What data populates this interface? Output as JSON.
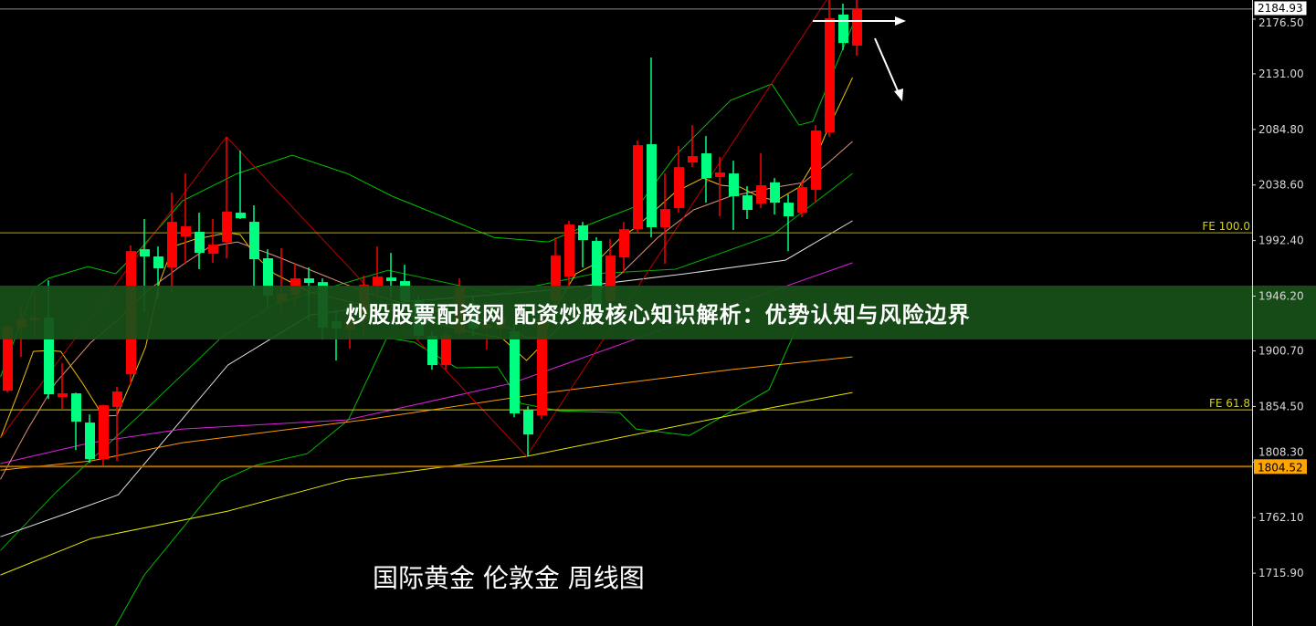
{
  "banner_title": "炒股股票配资网 配资炒股核心知识解析：优势认知与风险边界",
  "caption": "国际黄金 伦敦金 周线图",
  "chart_data": {
    "type": "candlestick",
    "ylim": [
      1672,
      2192.4
    ],
    "grid": false,
    "colors": {
      "up": "#ff0000",
      "down": "#00ff80",
      "background": "#000000",
      "axis": "#d8d8d8"
    },
    "y_ticks": [
      "2176.50",
      "2131.00",
      "2084.80",
      "2038.60",
      "1992.40",
      "1946.20",
      "1900.70",
      "1854.50",
      "1808.30",
      "1762.10",
      "1715.90"
    ],
    "current_price": {
      "label": "2184.93",
      "value": 2184.93
    },
    "price_marker": {
      "label": "1804.52",
      "value": 1804.52,
      "color": "#ffa500"
    },
    "fib_levels": [
      {
        "label": "FE 100.0",
        "value": 1998.9,
        "color": "#b0b000"
      },
      {
        "label": "FE 61.8",
        "value": 1851.7,
        "color": "#d4d400"
      }
    ],
    "candles": [
      [
        1867.6,
        1923.0,
        1866.1,
        1920.8
      ],
      [
        1920.0,
        1937.4,
        1895.7,
        1926.8
      ],
      [
        1926.1,
        1949.6,
        1911.6,
        1928.3
      ],
      [
        1928.3,
        1959.4,
        1860.8,
        1864.6
      ],
      [
        1862.3,
        1890.4,
        1852.5,
        1865.4
      ],
      [
        1865.4,
        1866.0,
        1818.3,
        1841.8
      ],
      [
        1841.1,
        1847.9,
        1807.7,
        1810.7
      ],
      [
        1810.7,
        1856.0,
        1805.4,
        1855.5
      ],
      [
        1854.0,
        1870.7,
        1809.2,
        1866.9
      ],
      [
        1881.3,
        1988.3,
        1872.2,
        1983.7
      ],
      [
        1985.2,
        2010.3,
        1932.9,
        1979.2
      ],
      [
        1979.2,
        1987.5,
        1943.5,
        1969.3
      ],
      [
        1970.1,
        2032.3,
        1949.6,
        2008.0
      ],
      [
        1995.9,
        2048.2,
        1973.1,
        2004.2
      ],
      [
        1999.7,
        2015.6,
        1968.6,
        1982.2
      ],
      [
        1981.5,
        2010.3,
        1973.9,
        1989.0
      ],
      [
        1991.3,
        2078.6,
        1977.7,
        2016.4
      ],
      [
        2015.6,
        2067.2,
        2010.3,
        2011.0
      ],
      [
        2008.0,
        2021.7,
        1951.9,
        1976.9
      ],
      [
        1977.7,
        1985.2,
        1936.7,
        1946.5
      ],
      [
        1941.2,
        1986.0,
        1932.9,
        1948.1
      ],
      [
        1947.3,
        1973.1,
        1938.2,
        1961.0
      ],
      [
        1961.0,
        1970.1,
        1925.3,
        1957.2
      ],
      [
        1957.9,
        1961.0,
        1910.1,
        1920.0
      ],
      [
        1925.3,
        1934.4,
        1892.7,
        1919.2
      ],
      [
        1918.5,
        1934.4,
        1902.5,
        1926.8
      ],
      [
        1926.8,
        1963.2,
        1913.2,
        1955.6
      ],
      [
        1954.9,
        1987.5,
        1947.3,
        1962.5
      ],
      [
        1961.7,
        1982.2,
        1944.3,
        1958.7
      ],
      [
        1958.7,
        1972.3,
        1934.4,
        1942.0
      ],
      [
        1942.0,
        1945.8,
        1910.1,
        1913.2
      ],
      [
        1913.2,
        1917.0,
        1885.1,
        1888.9
      ],
      [
        1888.9,
        1917.7,
        1885.1,
        1913.9
      ],
      [
        1915.4,
        1961.0,
        1911.6,
        1953.4
      ],
      [
        1939.7,
        1945.8,
        1913.2,
        1919.2
      ],
      [
        1919.2,
        1930.6,
        1901.8,
        1923.0
      ],
      [
        1919.2,
        1935.9,
        1913.2,
        1929.1
      ],
      [
        1917.0,
        1923.0,
        1845.6,
        1848.7
      ],
      [
        1851.7,
        1854.7,
        1813.0,
        1831.2
      ],
      [
        1847.1,
        1930.6,
        1844.1,
        1926.8
      ],
      [
        1942.0,
        1995.1,
        1938.2,
        1979.9
      ],
      [
        1962.5,
        2008.8,
        1954.9,
        2005.7
      ],
      [
        2005.0,
        2008.0,
        1970.1,
        1992.8
      ],
      [
        1992.1,
        1995.1,
        1934.4,
        1938.2
      ],
      [
        1942.0,
        1993.6,
        1938.2,
        1979.9
      ],
      [
        1978.4,
        2008.0,
        1965.5,
        2001.9
      ],
      [
        2001.9,
        2075.5,
        1998.9,
        2071.7
      ],
      [
        2072.5,
        2144.6,
        1995.1,
        2003.5
      ],
      [
        2003.5,
        2048.2,
        1973.1,
        2018.6
      ],
      [
        2019.4,
        2071.0,
        2015.6,
        2053.5
      ],
      [
        2057.3,
        2088.4,
        2053.5,
        2062.6
      ],
      [
        2064.9,
        2079.3,
        2023.9,
        2044.4
      ],
      [
        2045.2,
        2061.9,
        2012.6,
        2049.0
      ],
      [
        2048.2,
        2058.8,
        2001.2,
        2029.3
      ],
      [
        2030.0,
        2037.6,
        2010.3,
        2017.9
      ],
      [
        2023.2,
        2064.9,
        2019.4,
        2038.4
      ],
      [
        2040.8,
        2044.4,
        2014.1,
        2023.9
      ],
      [
        2023.9,
        2030.8,
        1983.7,
        2012.6
      ],
      [
        2015.6,
        2042.2,
        2011.8,
        2036.8
      ],
      [
        2034.6,
        2088.4,
        2023.9,
        2083.9
      ],
      [
        2082.4,
        2192.4,
        2078.6,
        2177.2
      ],
      [
        2180.3,
        2189.4,
        2150.7,
        2156.7
      ],
      [
        2154.5,
        2192.4,
        2146.1,
        2184.93
      ]
    ],
    "candle_fields": [
      "open",
      "high",
      "low",
      "close"
    ],
    "lines": [
      {
        "color": "#00c000",
        "points": [
          [
            -0.5,
            1879.0
          ],
          [
            1.9,
            1951.9
          ],
          [
            3.0,
            1961.0
          ],
          [
            5.9,
            1970.8
          ],
          [
            7.9,
            1964.8
          ],
          [
            9.7,
            1985.2
          ],
          [
            12.8,
            2025.5
          ],
          [
            16.8,
            2048.2
          ],
          [
            20.8,
            2063.4
          ],
          [
            24.8,
            2048.2
          ],
          [
            28.1,
            2029.3
          ],
          [
            35.5,
            1995.1
          ],
          [
            39.5,
            1991.3
          ],
          [
            42.1,
            2004.2
          ],
          [
            46.1,
            2021.7
          ],
          [
            48.8,
            2063.4
          ],
          [
            52.8,
            2109.0
          ],
          [
            55.8,
            2122.6
          ],
          [
            57.8,
            2088.4
          ],
          [
            58.8,
            2091.5
          ],
          [
            61.7,
            2171.2
          ]
        ]
      },
      {
        "color": "#00c000",
        "points": [
          [
            7.9,
            1671.9
          ],
          [
            10.0,
            1714.4
          ],
          [
            15.6,
            1792.5
          ],
          [
            18.1,
            1805.4
          ],
          [
            21.9,
            1815.3
          ],
          [
            24.9,
            1843.4
          ],
          [
            27.7,
            1911.6
          ],
          [
            29.7,
            1907.9
          ],
          [
            32.8,
            1886.6
          ],
          [
            35.8,
            1887.4
          ],
          [
            37.5,
            1857.0
          ],
          [
            40.3,
            1850.9
          ],
          [
            44.7,
            1849.4
          ],
          [
            45.9,
            1835.8
          ],
          [
            49.8,
            1830.4
          ],
          [
            55.6,
            1868.4
          ],
          [
            57.3,
            1911.6
          ],
          [
            58.1,
            1932.9
          ]
        ]
      },
      {
        "color": "#00b000",
        "points": [
          [
            -0.5,
            1734.8
          ],
          [
            3.5,
            1782.6
          ],
          [
            10.0,
            1850.9
          ],
          [
            15.6,
            1911.6
          ],
          [
            19.5,
            1939.7
          ],
          [
            27.8,
            1967.8
          ],
          [
            35.8,
            1948.1
          ],
          [
            42.8,
            1964.8
          ],
          [
            48.8,
            1968.6
          ],
          [
            55.9,
            1997.4
          ],
          [
            61.7,
            2048.2
          ]
        ]
      },
      {
        "color": "#e0e0e0",
        "points": [
          [
            -0.5,
            1746.2
          ],
          [
            4.8,
            1767.5
          ],
          [
            8.1,
            1781.1
          ],
          [
            16.1,
            1888.9
          ],
          [
            22.1,
            1930.6
          ],
          [
            29.5,
            1942.0
          ],
          [
            39.5,
            1951.1
          ],
          [
            49.5,
            1964.8
          ],
          [
            56.8,
            1976.1
          ],
          [
            61.7,
            2008.8
          ]
        ]
      },
      {
        "color": "#e020e0",
        "points": [
          [
            -0.5,
            1807.0
          ],
          [
            6.1,
            1824.4
          ],
          [
            12.8,
            1835.8
          ],
          [
            24.8,
            1843.4
          ],
          [
            36.8,
            1873.7
          ],
          [
            46.1,
            1911.6
          ],
          [
            61.7,
            1973.9
          ]
        ]
      },
      {
        "color": "#ff9a00",
        "points": [
          [
            -0.5,
            1801.6
          ],
          [
            6.1,
            1809.2
          ],
          [
            12.8,
            1824.4
          ],
          [
            26.1,
            1843.4
          ],
          [
            39.5,
            1866.1
          ],
          [
            52.8,
            1885.1
          ],
          [
            61.7,
            1895.7
          ]
        ]
      },
      {
        "color": "#e6e600",
        "points": [
          [
            -0.5,
            1714.4
          ],
          [
            6.1,
            1744.7
          ],
          [
            16.1,
            1767.5
          ],
          [
            24.8,
            1794.0
          ],
          [
            37.9,
            1813.0
          ],
          [
            52.8,
            1847.1
          ],
          [
            61.7,
            1866.1
          ]
        ]
      },
      {
        "color": "#f0c000",
        "points": [
          [
            -0.5,
            1828.2
          ],
          [
            0.8,
            1866.1
          ],
          [
            1.9,
            1900.3
          ],
          [
            3.0,
            1901.0
          ],
          [
            3.9,
            1900.3
          ],
          [
            5.5,
            1873.7
          ],
          [
            7.0,
            1846.4
          ],
          [
            8.0,
            1847.1
          ],
          [
            9.0,
            1873.7
          ],
          [
            10.1,
            1904.1
          ],
          [
            11.1,
            1957.2
          ],
          [
            12.1,
            1987.5
          ],
          [
            13.7,
            1993.6
          ],
          [
            16.1,
            1998.9
          ],
          [
            17.0,
            1997.4
          ],
          [
            18.1,
            1979.9
          ],
          [
            19.5,
            1964.8
          ],
          [
            22.1,
            1949.6
          ],
          [
            24.8,
            1942.0
          ],
          [
            28.1,
            1934.4
          ],
          [
            31.5,
            1923.0
          ],
          [
            34.1,
            1915.4
          ],
          [
            36.1,
            1911.6
          ],
          [
            37.9,
            1892.7
          ],
          [
            38.9,
            1904.1
          ],
          [
            39.9,
            1934.4
          ],
          [
            41.5,
            1964.8
          ],
          [
            42.8,
            1972.3
          ],
          [
            44.8,
            1995.1
          ],
          [
            45.8,
            2002.7
          ],
          [
            48.8,
            2033.0
          ],
          [
            50.8,
            2044.4
          ],
          [
            52.1,
            2038.4
          ],
          [
            53.5,
            2036.8
          ],
          [
            54.8,
            2029.3
          ],
          [
            56.1,
            2025.5
          ],
          [
            57.8,
            2036.8
          ],
          [
            58.8,
            2055.8
          ],
          [
            59.8,
            2082.4
          ],
          [
            61.7,
            2127.9
          ]
        ]
      },
      {
        "color": "#e0907a",
        "points": [
          [
            -0.5,
            1794.0
          ],
          [
            1.5,
            1835.8
          ],
          [
            3.5,
            1873.7
          ],
          [
            6.1,
            1907.8
          ],
          [
            8.1,
            1926.8
          ],
          [
            10.1,
            1949.6
          ],
          [
            12.8,
            1972.3
          ],
          [
            14.8,
            1987.5
          ],
          [
            16.8,
            1991.3
          ],
          [
            19.5,
            1979.9
          ],
          [
            22.8,
            1964.8
          ],
          [
            26.1,
            1949.6
          ],
          [
            29.5,
            1938.2
          ],
          [
            32.8,
            1930.6
          ],
          [
            36.1,
            1923.0
          ],
          [
            37.9,
            1911.6
          ],
          [
            39.5,
            1911.6
          ],
          [
            42.1,
            1942.0
          ],
          [
            44.8,
            1964.8
          ],
          [
            47.5,
            1995.1
          ],
          [
            50.1,
            2017.9
          ],
          [
            52.8,
            2029.3
          ],
          [
            56.1,
            2036.8
          ],
          [
            58.1,
            2040.6
          ],
          [
            59.8,
            2055.8
          ],
          [
            61.7,
            2074.8
          ]
        ]
      },
      {
        "color": "#c00000",
        "points": [
          [
            -0.5,
            1828.2
          ],
          [
            16.0,
            2078.6
          ],
          [
            37.9,
            1813.0
          ],
          [
            59.8,
            2192.4
          ]
        ]
      }
    ]
  }
}
